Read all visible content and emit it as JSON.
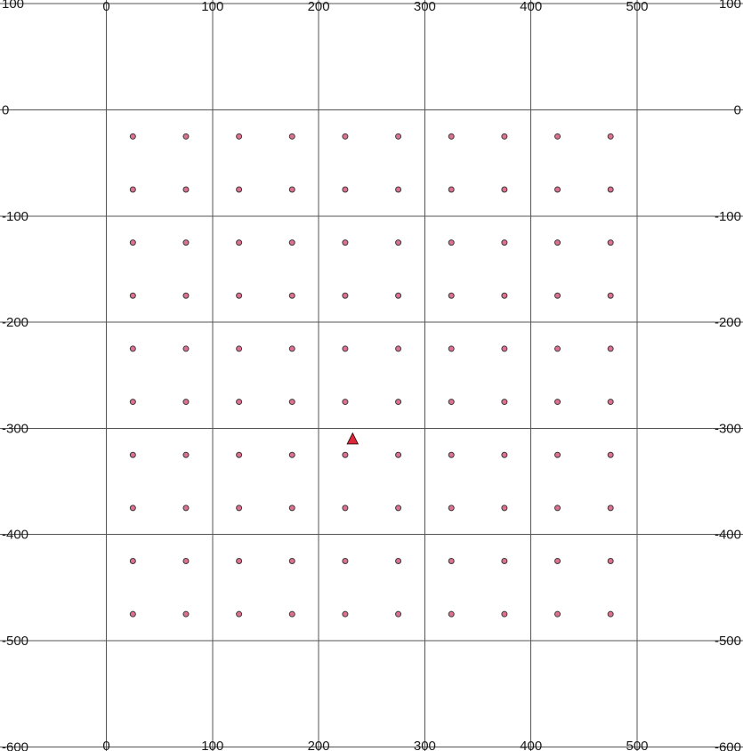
{
  "chart_data": {
    "type": "scatter",
    "title": "",
    "xlabel": "",
    "ylabel": "",
    "xlim": [
      -100,
      600
    ],
    "ylim": [
      -600,
      100
    ],
    "grid": true,
    "x_ticks": [
      0,
      100,
      200,
      300,
      400,
      500
    ],
    "y_ticks": [
      100,
      0,
      -100,
      -200,
      -300,
      -400,
      -500,
      -600
    ],
    "series": [
      {
        "marker": "circle",
        "color": "#e07090",
        "x_values": [
          25,
          75,
          125,
          175,
          225,
          275,
          325,
          375,
          425,
          475
        ],
        "y_values": [
          -25,
          -75,
          -125,
          -175,
          -225,
          -275,
          -325,
          -375,
          -425,
          -475
        ]
      },
      {
        "marker": "triangle",
        "color": "#e0283c",
        "points": [
          {
            "x": 232,
            "y": -310
          }
        ]
      }
    ]
  }
}
